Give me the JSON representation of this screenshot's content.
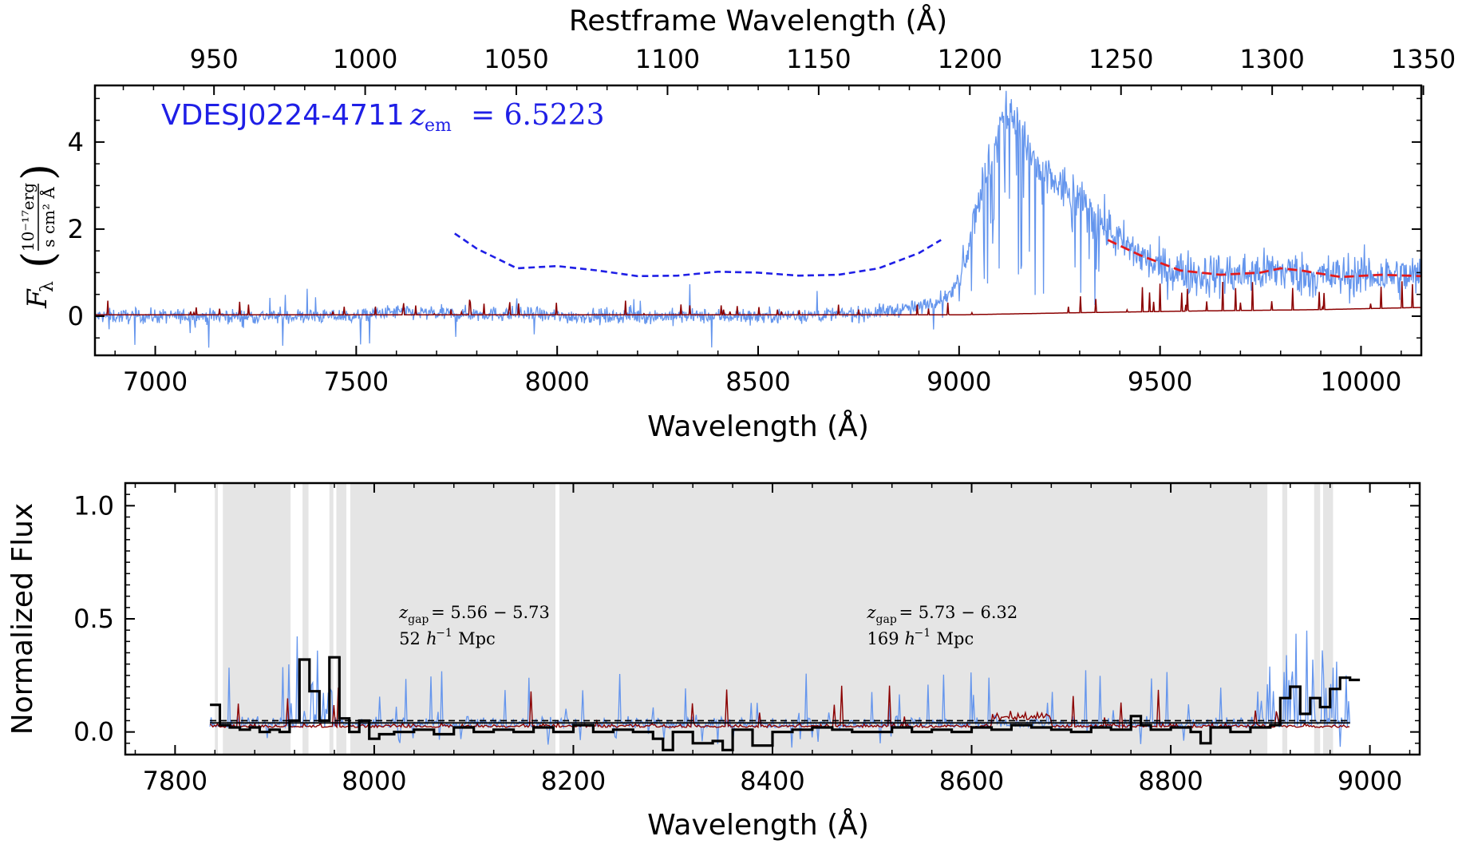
{
  "chart_data": [
    {
      "type": "line",
      "annotation": {
        "name": "VDESJ0224-4711",
        "z_label": "z",
        "z_sub": "em",
        "z_value": "= 6.5223",
        "color": "#1f1fe6"
      },
      "xlabel": "Wavelength (Å)",
      "x2label": "Restframe Wavelength (Å)",
      "ylabel_symbol": "F",
      "ylabel_sub": "λ",
      "ylabel_unit_num": "10⁻¹⁷erg",
      "ylabel_unit_den": "s cm² Å",
      "xlim": [
        6850,
        10150
      ],
      "ylim": [
        -0.9,
        5.3
      ],
      "xticks": [
        7000,
        7500,
        8000,
        8500,
        9000,
        9500,
        10000
      ],
      "x2ticks": [
        950,
        1000,
        1050,
        1100,
        1150,
        1200,
        1250,
        1300,
        1350
      ],
      "yticks": [
        0,
        2,
        4
      ],
      "z_em": 6.5223,
      "colors": {
        "flux": "#6495ed",
        "error": "#8b0000",
        "continuum_blue": "#1f1fe6",
        "continuum_red": "#e31a1c"
      },
      "series": [],
      "flux_profile": {
        "x": [
          6850,
          7500,
          7600,
          7700,
          7900,
          8000,
          8500,
          8750,
          8800,
          8900,
          8980,
          9000,
          9020,
          9050,
          9080,
          9110,
          9130,
          9150,
          9200,
          9300,
          9400,
          9500,
          9600,
          9700,
          9800,
          9900,
          10000,
          10150
        ],
        "y": [
          0.0,
          0.0,
          0.1,
          0.05,
          0.05,
          0.0,
          0.0,
          0.05,
          0.1,
          0.2,
          0.5,
          0.9,
          1.6,
          2.8,
          3.6,
          4.6,
          4.8,
          4.2,
          3.3,
          2.7,
          1.7,
          1.1,
          0.95,
          0.95,
          1.05,
          0.9,
          0.95,
          0.9
        ]
      },
      "error_profile": {
        "x": [
          6850,
          9000,
          9300,
          9600,
          9900,
          10150
        ],
        "y": [
          0.03,
          0.03,
          0.08,
          0.12,
          0.15,
          0.2
        ]
      },
      "continuum_blue_pts": {
        "x": [
          7745,
          7800,
          7900,
          8000,
          8100,
          8200,
          8300,
          8400,
          8500,
          8600,
          8700,
          8800,
          8900,
          8955
        ],
        "y": [
          1.9,
          1.55,
          1.1,
          1.15,
          1.05,
          0.92,
          0.93,
          1.02,
          1.0,
          0.93,
          0.95,
          1.1,
          1.45,
          1.75
        ]
      },
      "continuum_red_pts": {
        "x": [
          9370,
          9450,
          9550,
          9650,
          9750,
          9800,
          9850,
          9950,
          10050,
          10150
        ],
        "y": [
          1.75,
          1.4,
          1.05,
          0.95,
          1.0,
          1.1,
          1.05,
          0.9,
          0.95,
          0.92
        ]
      }
    },
    {
      "type": "line",
      "xlabel": "Wavelength (Å)",
      "ylabel": "Normalized Flux",
      "xlim": [
        7750,
        9050
      ],
      "ylim": [
        -0.1,
        1.1
      ],
      "xticks": [
        7800,
        8000,
        8200,
        8400,
        8600,
        8800,
        9000
      ],
      "yticks": [
        0.0,
        0.5,
        1.0
      ],
      "ytick_labels": [
        "0.0",
        "0.5",
        "1.0"
      ],
      "colors": {
        "flux": "#6495ed",
        "error": "#8b0000",
        "binned": "#000000",
        "shade": "#e5e5e5"
      },
      "threshold_levels": [
        0.05,
        0.04
      ],
      "shaded_regions": [
        [
          7840,
          7843
        ],
        [
          7848,
          7916
        ],
        [
          7928,
          7934
        ],
        [
          7955,
          7959
        ],
        [
          7962,
          7972
        ],
        [
          7976,
          8182
        ],
        [
          8186,
          8897
        ],
        [
          8912,
          8917
        ],
        [
          8944,
          8950
        ],
        [
          8953,
          8963
        ]
      ],
      "gaps": [
        {
          "z_label": "z",
          "z_sub": "gap",
          "z_range": "= 5.56 − 5.73",
          "length": "52",
          "h_unit": "h",
          "h_exp": "−1",
          "mpc": "Mpc",
          "x": 8025
        },
        {
          "z_label": "z",
          "z_sub": "gap",
          "z_range": "= 5.73 − 6.32",
          "length": "169",
          "h_unit": "h",
          "h_exp": "−1",
          "mpc": "Mpc",
          "x": 8495
        }
      ],
      "binned_flux": {
        "x": [
          7835,
          7845,
          7855,
          7865,
          7875,
          7885,
          7895,
          7905,
          7915,
          7925,
          7935,
          7945,
          7955,
          7965,
          7975,
          7985,
          7995,
          8005,
          8020,
          8040,
          8060,
          8080,
          8100,
          8120,
          8140,
          8160,
          8180,
          8200,
          8220,
          8240,
          8260,
          8280,
          8290,
          8300,
          8320,
          8340,
          8350,
          8360,
          8380,
          8400,
          8420,
          8440,
          8460,
          8480,
          8500,
          8520,
          8540,
          8560,
          8580,
          8600,
          8620,
          8640,
          8660,
          8680,
          8700,
          8720,
          8740,
          8760,
          8770,
          8780,
          8800,
          8820,
          8830,
          8840,
          8860,
          8880,
          8900,
          8910,
          8920,
          8930,
          8940,
          8950,
          8960,
          8970,
          8980
        ],
        "y": [
          0.12,
          0.03,
          0.02,
          0.01,
          0.02,
          0.0,
          0.01,
          0.0,
          0.05,
          0.32,
          0.18,
          0.05,
          0.33,
          0.06,
          0.0,
          0.05,
          -0.03,
          -0.01,
          0.0,
          0.01,
          -0.01,
          0.02,
          0.0,
          0.01,
          0.0,
          0.02,
          0.0,
          0.03,
          0.0,
          0.01,
          0.0,
          -0.03,
          -0.08,
          0.0,
          -0.05,
          -0.04,
          -0.08,
          0.01,
          -0.06,
          0.0,
          0.01,
          0.02,
          0.01,
          0.0,
          0.0,
          0.02,
          0.0,
          0.01,
          0.0,
          0.02,
          0.01,
          0.03,
          0.02,
          0.01,
          0.0,
          0.02,
          0.01,
          0.07,
          0.03,
          0.01,
          0.02,
          0.0,
          -0.05,
          0.02,
          0.0,
          0.02,
          0.03,
          0.15,
          0.2,
          0.08,
          0.15,
          0.11,
          0.19,
          0.24,
          0.23
        ]
      }
    }
  ]
}
